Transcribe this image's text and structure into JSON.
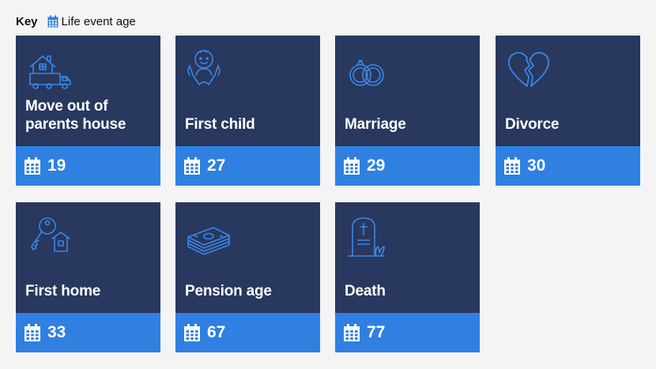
{
  "key": {
    "title": "Key",
    "icon": "calendar-icon",
    "label": "Life event age"
  },
  "colors": {
    "card_top": "#28385e",
    "card_bottom": "#2f80e0",
    "icon_stroke": "#3b86e6",
    "background": "#f4f4f5"
  },
  "cards": [
    {
      "label": "Move out of parents house",
      "age": "19",
      "icon": "moving-house-icon"
    },
    {
      "label": "First child",
      "age": "27",
      "icon": "baby-icon"
    },
    {
      "label": "Marriage",
      "age": "29",
      "icon": "wedding-rings-icon"
    },
    {
      "label": "Divorce",
      "age": "30",
      "icon": "broken-heart-icon"
    },
    {
      "label": "First home",
      "age": "33",
      "icon": "house-key-icon"
    },
    {
      "label": "Pension age",
      "age": "67",
      "icon": "money-stack-icon"
    },
    {
      "label": "Death",
      "age": "77",
      "icon": "gravestone-icon"
    }
  ]
}
